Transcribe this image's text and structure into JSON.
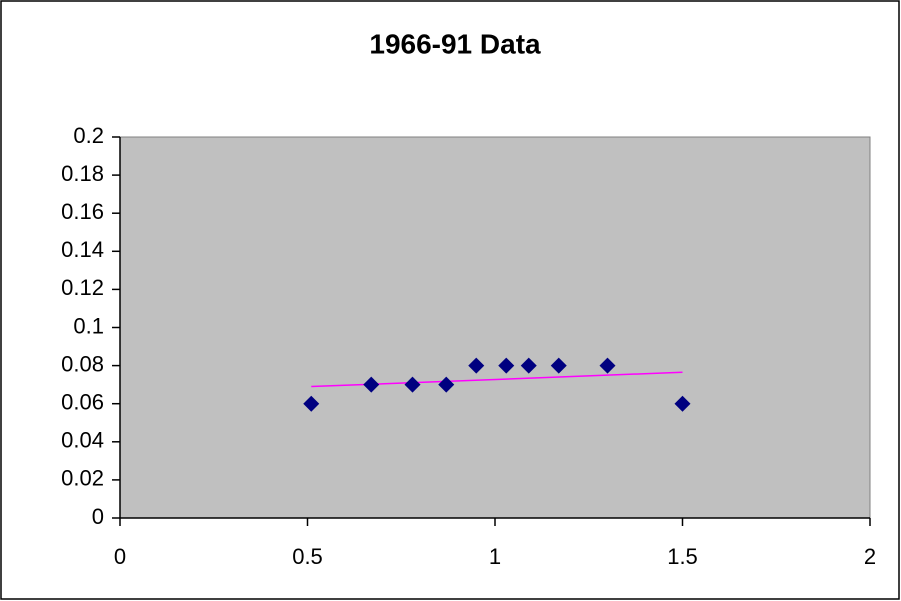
{
  "chart_data": {
    "type": "scatter",
    "title": "1966-91 Data",
    "series": [
      {
        "color": "#000080",
        "x": [
          0.51,
          0.67,
          0.78,
          0.87,
          0.95,
          1.03,
          1.09,
          1.17,
          1.3,
          1.5
        ],
        "values": [
          0.06,
          0.07,
          0.07,
          0.07,
          0.08,
          0.08,
          0.08,
          0.08,
          0.08,
          0.06
        ]
      }
    ],
    "trendline": {
      "color": "#ff00ff",
      "x": [
        0.51,
        1.5
      ],
      "values": [
        0.069,
        0.0765
      ]
    },
    "xlim": [
      0,
      2
    ],
    "xticks": [
      0,
      0.5,
      1,
      1.5,
      2
    ],
    "ylim": [
      0,
      0.2
    ],
    "yticks": [
      0,
      0.02,
      0.04,
      0.06,
      0.08,
      0.1,
      0.12,
      0.14,
      0.16,
      0.18,
      0.2
    ],
    "plot_background": "#c0c0c0",
    "grid": false
  }
}
